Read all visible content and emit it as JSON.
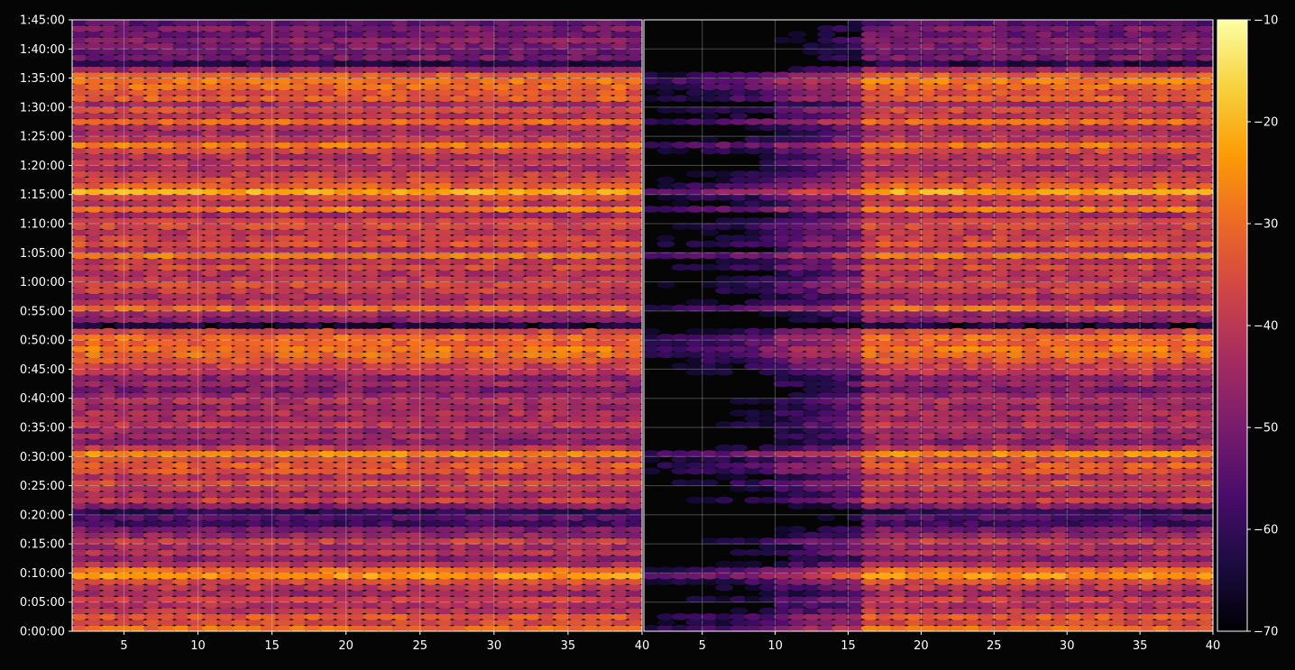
{
  "chart_data": {
    "type": "heatmap",
    "title": "",
    "xlabel": "",
    "ylabel": "",
    "panels": [
      {
        "name": "",
        "xlim": [
          1.5,
          40
        ],
        "x_ticks": [
          5,
          10,
          15,
          20,
          25,
          30,
          35,
          40
        ]
      },
      {
        "name": "",
        "xlim": [
          1,
          40
        ],
        "x_ticks": [
          5,
          10,
          15,
          20,
          25,
          30,
          35,
          40
        ]
      }
    ],
    "y_axis": {
      "unit": "h:mm:ss",
      "range": [
        "0:00:00",
        "1:45:00"
      ],
      "ticks": [
        "0:00:00",
        "0:05:00",
        "0:10:00",
        "0:15:00",
        "0:20:00",
        "0:25:00",
        "0:30:00",
        "0:35:00",
        "0:40:00",
        "0:45:00",
        "0:50:00",
        "0:55:00",
        "1:00:00",
        "1:05:00",
        "1:10:00",
        "1:15:00",
        "1:20:00",
        "1:25:00",
        "1:30:00",
        "1:35:00",
        "1:40:00",
        "1:45:00"
      ]
    },
    "colorbar": {
      "colormap": "inferno",
      "range": [
        -70,
        -10
      ],
      "ticks": [
        "−10",
        "−20",
        "−30",
        "−40",
        "−50",
        "−60",
        "−70"
      ],
      "colors": [
        "#000004",
        "#1b0c41",
        "#4a0c6b",
        "#781c6d",
        "#a52c60",
        "#cf4446",
        "#ed6925",
        "#fb9b06",
        "#f7d13d",
        "#fcffa4"
      ]
    },
    "grid": true,
    "row_levels_minutes_db": [
      [
        0,
        -30
      ],
      [
        1,
        -36
      ],
      [
        2,
        -33
      ],
      [
        3,
        -40
      ],
      [
        4,
        -42
      ],
      [
        5,
        -38
      ],
      [
        6,
        -45
      ],
      [
        7,
        -40
      ],
      [
        8,
        -35
      ],
      [
        9,
        -24
      ],
      [
        10,
        -30
      ],
      [
        11,
        -42
      ],
      [
        12,
        -48
      ],
      [
        13,
        -40
      ],
      [
        14,
        -44
      ],
      [
        15,
        -38
      ],
      [
        16,
        -46
      ],
      [
        17,
        -50
      ],
      [
        18,
        -58
      ],
      [
        19,
        -55
      ],
      [
        20,
        -62
      ],
      [
        21,
        -48
      ],
      [
        22,
        -38
      ],
      [
        23,
        -44
      ],
      [
        24,
        -40
      ],
      [
        25,
        -36
      ],
      [
        26,
        -42
      ],
      [
        27,
        -34
      ],
      [
        28,
        -32
      ],
      [
        29,
        -36
      ],
      [
        30,
        -26
      ],
      [
        31,
        -40
      ],
      [
        32,
        -48
      ],
      [
        33,
        -44
      ],
      [
        34,
        -46
      ],
      [
        35,
        -40
      ],
      [
        36,
        -44
      ],
      [
        37,
        -42
      ],
      [
        38,
        -45
      ],
      [
        39,
        -42
      ],
      [
        40,
        -46
      ],
      [
        41,
        -50
      ],
      [
        42,
        -44
      ],
      [
        43,
        -48
      ],
      [
        44,
        -40
      ],
      [
        45,
        -38
      ],
      [
        46,
        -34
      ],
      [
        47,
        -30
      ],
      [
        48,
        -28
      ],
      [
        49,
        -32
      ],
      [
        50,
        -30
      ],
      [
        51,
        -36
      ],
      [
        52,
        -64
      ],
      [
        53,
        -48
      ],
      [
        54,
        -44
      ],
      [
        55,
        -30
      ],
      [
        56,
        -40
      ],
      [
        57,
        -44
      ],
      [
        58,
        -38
      ],
      [
        59,
        -36
      ],
      [
        60,
        -40
      ],
      [
        61,
        -42
      ],
      [
        62,
        -36
      ],
      [
        63,
        -40
      ],
      [
        64,
        -28
      ],
      [
        65,
        -42
      ],
      [
        66,
        -34
      ],
      [
        67,
        -38
      ],
      [
        68,
        -40
      ],
      [
        69,
        -36
      ],
      [
        70,
        -38
      ],
      [
        71,
        -44
      ],
      [
        72,
        -28
      ],
      [
        73,
        -40
      ],
      [
        74,
        -36
      ],
      [
        75,
        -22
      ],
      [
        76,
        -32
      ],
      [
        77,
        -36
      ],
      [
        78,
        -38
      ],
      [
        79,
        -44
      ],
      [
        80,
        -40
      ],
      [
        81,
        -42
      ],
      [
        82,
        -36
      ],
      [
        83,
        -28
      ],
      [
        84,
        -40
      ],
      [
        85,
        -44
      ],
      [
        86,
        -42
      ],
      [
        87,
        -30
      ],
      [
        88,
        -40
      ],
      [
        89,
        -36
      ],
      [
        90,
        -44
      ],
      [
        91,
        -32
      ],
      [
        92,
        -34
      ],
      [
        93,
        -30
      ],
      [
        94,
        -28
      ],
      [
        95,
        -32
      ],
      [
        96,
        -46
      ],
      [
        97,
        -62
      ],
      [
        98,
        -50
      ],
      [
        99,
        -52
      ],
      [
        100,
        -50
      ],
      [
        101,
        -48
      ],
      [
        102,
        -52
      ],
      [
        103,
        -50
      ],
      [
        104,
        -54
      ]
    ]
  }
}
